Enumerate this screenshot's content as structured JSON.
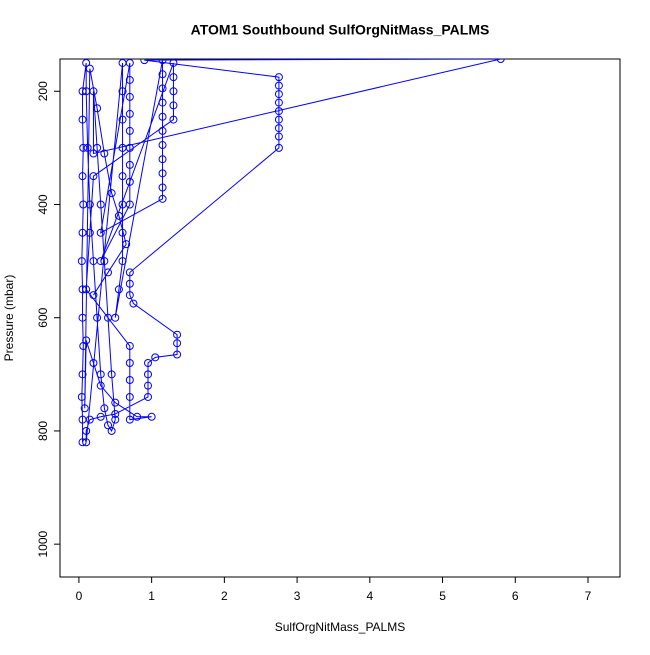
{
  "chart_data": {
    "type": "line",
    "title": "ATOM1 Southbound SulfOrgNitMass_PALMS",
    "x_label": "SulfOrgNitMass_PALMS",
    "y_label": "Pressure (mbar)",
    "xlim": [
      -0.26,
      7.44
    ],
    "ylim": [
      1058,
      143
    ],
    "xticks": [
      0,
      1,
      2,
      3,
      4,
      5,
      6,
      7
    ],
    "yticks": [
      200,
      400,
      600,
      800,
      1000
    ],
    "grid": false,
    "x": [
      0.05,
      0.05,
      0.04,
      0.05,
      0.06,
      0.05,
      0.05,
      0.04,
      0.05,
      0.06,
      0.05,
      0.06,
      0.05,
      0.05,
      0.1,
      0.1,
      0.12,
      0.15,
      0.2,
      0.25,
      0.3,
      0.35,
      0.4,
      0.45,
      0.5,
      0.45,
      0.4,
      0.35,
      0.3,
      0.25,
      0.2,
      0.2,
      5.8,
      0.9,
      2.75,
      2.75,
      2.75,
      2.75,
      2.75,
      2.75,
      2.75,
      2.75,
      2.75,
      0.7,
      0.7,
      0.7,
      0.75,
      1.35,
      1.35,
      1.35,
      1.05,
      0.95,
      0.95,
      0.95,
      0.95,
      0.5,
      0.3,
      0.15,
      0.1,
      0.1,
      0.6,
      0.6,
      0.6,
      0.6,
      0.6,
      0.6,
      0.6,
      0.6,
      0.55,
      0.5,
      1.15,
      1.15,
      1.15,
      1.15,
      1.15,
      1.15,
      1.15,
      1.15,
      1.15,
      1.15,
      1.15,
      0.3,
      0.7,
      0.7,
      0.7,
      0.7,
      0.7,
      0.7,
      0.7,
      0.7,
      0.7,
      0.3,
      1.3,
      1.3,
      1.3,
      1.3,
      1.3,
      0.2,
      0.15,
      0.1,
      0.7,
      0.7,
      0.7,
      0.7,
      0.7,
      1.0,
      0.8,
      0.5,
      0.3,
      0.2,
      0.1,
      0.08,
      0.15,
      0.25,
      0.35,
      0.45,
      0.55,
      0.65,
      0.4,
      0.2
    ],
    "series": [
      {
        "color": "#0000ff",
        "values": [
          820,
          780,
          740,
          700,
          650,
          600,
          550,
          500,
          450,
          400,
          350,
          300,
          250,
          200,
          150,
          200,
          300,
          400,
          500,
          600,
          700,
          760,
          790,
          800,
          780,
          700,
          600,
          500,
          400,
          300,
          200,
          310,
          143,
          145,
          175,
          190,
          205,
          220,
          235,
          250,
          265,
          280,
          300,
          520,
          540,
          560,
          575,
          630,
          645,
          665,
          670,
          680,
          700,
          720,
          740,
          770,
          775,
          780,
          800,
          820,
          150,
          200,
          250,
          300,
          350,
          400,
          450,
          500,
          550,
          600,
          145,
          170,
          195,
          220,
          245,
          270,
          295,
          320,
          345,
          370,
          390,
          450,
          150,
          180,
          210,
          240,
          270,
          300,
          330,
          360,
          400,
          500,
          150,
          175,
          200,
          225,
          250,
          350,
          450,
          550,
          650,
          680,
          710,
          740,
          780,
          775,
          775,
          750,
          720,
          680,
          640,
          760,
          160,
          230,
          310,
          380,
          420,
          470,
          520,
          560
        ]
      }
    ]
  }
}
